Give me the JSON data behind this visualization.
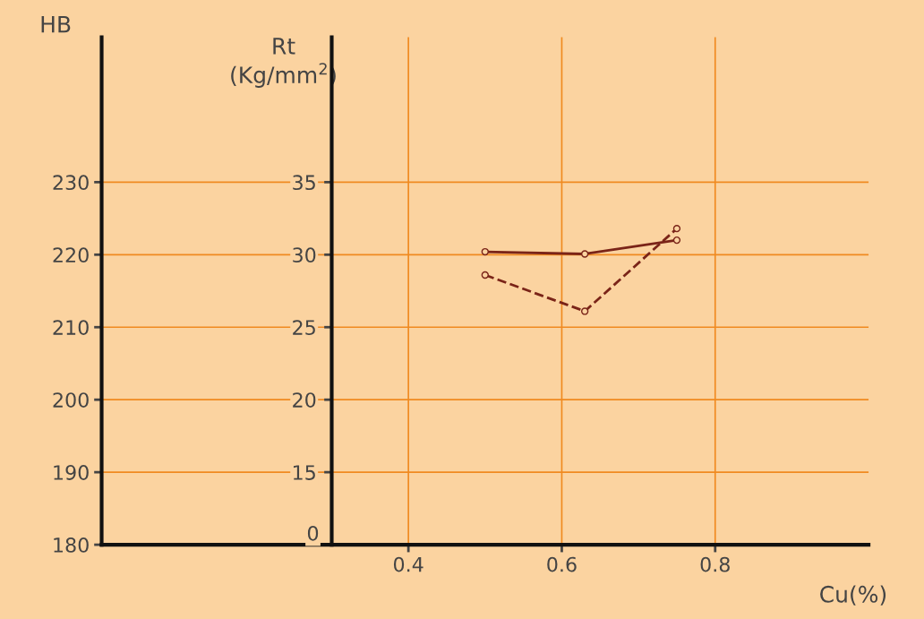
{
  "chart_data": {
    "type": "line",
    "xlabel": "Cu(%)",
    "ylabel": "HB",
    "y2label": "Rt\n(Kg/mm$^{2}$)",
    "x": [
      0.5,
      0.63,
      0.75
    ],
    "series": [
      {
        "color": "#7a2418",
        "values": [
          220.4,
          220.1,
          222.0
        ],
        "line_style": "solid"
      },
      {
        "color": "#7a2418",
        "values": [
          28.6,
          26.1,
          31.8
        ],
        "line_style": "dashed",
        "axis": "y2"
      }
    ],
    "xlim": [
      0,
      1.0
    ],
    "xticks": [
      0.4,
      0.6,
      0.8
    ],
    "ylim": [
      180,
      250
    ],
    "yticks": [
      180,
      190,
      200,
      210,
      220,
      230
    ],
    "y2lim": [
      10,
      45
    ],
    "y2ticks": [
      15,
      20,
      25,
      30,
      35
    ],
    "annotations": [
      "0"
    ],
    "grid": true,
    "marker": "circle"
  }
}
